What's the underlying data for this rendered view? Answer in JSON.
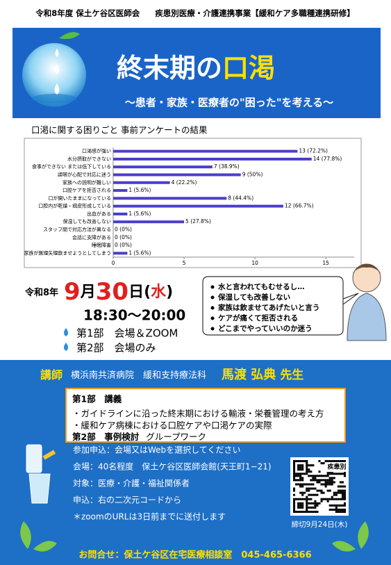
{
  "header": {
    "organizer": "令和8年度 保土ケ谷区医師会",
    "project": "疾患別医療・介護連携事業【緩和ケア多職種連携研修】"
  },
  "banner": {
    "title_main": "終末期の",
    "title_accent": "口渇",
    "subtitle": "〜患者・家族・医療者の\"困った\"を考える〜"
  },
  "chart_data": {
    "type": "bar",
    "orientation": "horizontal",
    "title": "口渇に関する困りごと 事前アンケートの結果",
    "categories": [
      "口渇感が強い",
      "水分摂取ができない",
      "食事ができない または低下している",
      "誤嚥が心配で対応に迷う",
      "家族への説明が難しい",
      "口腔ケアを拒否される",
      "口が開いたままになっている",
      "口腔内が乾燥・痂皮形成している",
      "出血がある",
      "保湿しても改善しない",
      "スタッフ間で対応方法が異なる",
      "会話に支障がある",
      "睡眠障害",
      "家族が無理矢理飲ませようとしてしまう"
    ],
    "values": [
      13,
      14,
      7,
      9,
      4,
      1,
      8,
      12,
      1,
      5,
      0,
      0,
      0,
      1
    ],
    "value_labels": [
      "13 (72.2%)",
      "14 (77.8%)",
      "7 (38.9%)",
      "9 (50%)",
      "4 (22.2%)",
      "1 (5.6%)",
      "8 (44.4%)",
      "12 (66.7%)",
      "1 (5.6%)",
      "5 (27.8%)",
      "0 (0%)",
      "0 (0%)",
      "0 (0%)",
      "1 (5.6%)"
    ],
    "color": "#4a3fc8",
    "xlim": [
      0,
      17
    ],
    "xticks": [
      0,
      5,
      10,
      15
    ],
    "grid": false
  },
  "event": {
    "era_year": "令和8年",
    "month": "9",
    "month_unit": "月",
    "day": "30",
    "day_unit": "日(",
    "weekday": "水",
    "weekday_close": ")",
    "time": "18:30〜20:00",
    "sessions": [
      "第1部　会場＆ZOOM",
      "第2部　会場のみ"
    ]
  },
  "concerns": [
    "水と言われてもむせるし…",
    "保湿しても改善しない",
    "家族は飲ませてあげたいと言う",
    "ケアが痛くて拒否される",
    "どこまでやっていいのか迷う"
  ],
  "lecturer": {
    "label": "講師",
    "affiliation": "横浜南共済病院　緩和支持療法科",
    "name": "馬渡 弘典",
    "honorific": "先生"
  },
  "program": {
    "part1_title": "第1部　講義",
    "part1_items": [
      "・ガイドラインに沿った終末期における輸液・栄養管理の考え方",
      "・緩和ケア病棟における口腔ケアや口渇ケアの実際"
    ],
    "part2_title": "第2部　事例検討",
    "part2_detail": "グループワーク"
  },
  "info": [
    "参加申込：会場又はWebを選択してください",
    "会場：40名程度　保土ケ谷区医師会館(天王町1−21)",
    "対象：医療・介護・福祉関係者",
    "申込：右の二次元コードから",
    "＊zoomのURLは3日前までに送付します"
  ],
  "qr": {
    "label": "疾患別",
    "deadline": "締切9月24日(木)"
  },
  "footer": "お問合せ：保土ケ谷区在宅医療相談室　045-465-6366"
}
